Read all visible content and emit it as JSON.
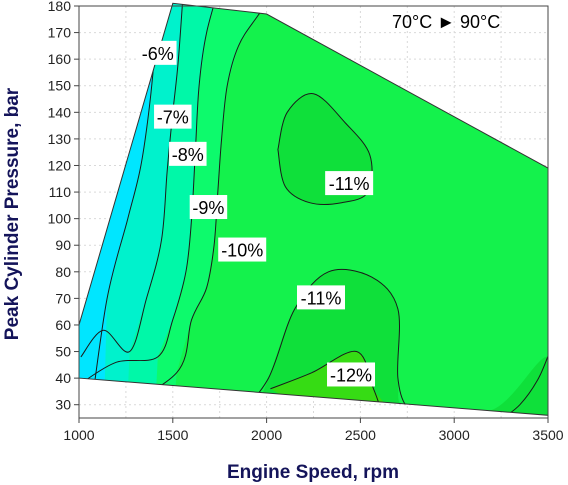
{
  "chart_data": {
    "type": "contour",
    "annotation": "70°C ► 90°C",
    "xlabel": "Engine Speed, rpm",
    "ylabel": "Peak Cylinder Pressure, bar",
    "xlim": [
      1000,
      3500
    ],
    "ylim": [
      25,
      180
    ],
    "x_ticks": [
      1000,
      1500,
      2000,
      2500,
      3000,
      3500
    ],
    "y_ticks": [
      30,
      40,
      50,
      60,
      70,
      80,
      90,
      100,
      110,
      120,
      130,
      140,
      150,
      160,
      170,
      180
    ],
    "grid": true,
    "boundary": [
      [
        1000,
        40
      ],
      [
        1000,
        60
      ],
      [
        1500,
        181
      ],
      [
        2000,
        177
      ],
      [
        3500,
        119
      ],
      [
        3500,
        26
      ]
    ],
    "levels": [
      {
        "label": "-6%",
        "x": 1420,
        "y": 162
      },
      {
        "label": "-7%",
        "x": 1500,
        "y": 138
      },
      {
        "label": "-8%",
        "x": 1580,
        "y": 124
      },
      {
        "label": "-9%",
        "x": 1690,
        "y": 104
      },
      {
        "label": "-10%",
        "x": 1870,
        "y": 88
      },
      {
        "label": "-11%",
        "x": 2290,
        "y": 70
      },
      {
        "label": "-11%",
        "x": 2440,
        "y": 113
      },
      {
        "label": "-12%",
        "x": 2450,
        "y": 41
      }
    ],
    "colors": {
      "cyan": "#00e6ff",
      "teal1": "#00f2cc",
      "teal2": "#00f8a8",
      "green1": "#0dfa6c",
      "green2": "#14f24c",
      "green3": "#0fe03a",
      "green4": "#36dc14",
      "contour": "#1a1a1a",
      "axis_title": "#14145a"
    }
  }
}
